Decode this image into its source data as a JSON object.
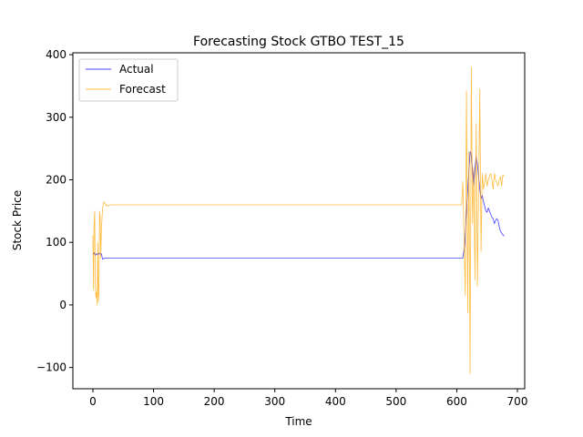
{
  "chart_data": {
    "type": "line",
    "title": "Forecasting Stock GTBO TEST_15",
    "xlabel": "Time",
    "ylabel": "Stock Price",
    "xlim": [
      -33,
      712
    ],
    "ylim": [
      -134,
      403
    ],
    "xticks": [
      0,
      100,
      200,
      300,
      400,
      500,
      600,
      700
    ],
    "yticks": [
      -100,
      0,
      100,
      200,
      300,
      400
    ],
    "grid": false,
    "legend_position": "top-left",
    "series": [
      {
        "name": "Actual",
        "color": "#0000ff",
        "x": [
          0,
          2,
          4,
          6,
          8,
          10,
          12,
          14,
          16,
          20,
          30,
          50,
          100,
          200,
          300,
          400,
          500,
          600,
          610,
          613,
          616,
          619,
          622,
          624,
          626,
          628,
          630,
          632,
          634,
          636,
          638,
          640,
          642,
          644,
          646,
          648,
          650,
          652,
          654,
          656,
          658,
          660,
          662,
          664,
          666,
          668,
          670,
          672,
          674,
          676,
          678
        ],
        "y": [
          80,
          84,
          79,
          82,
          80,
          83,
          81,
          82,
          73,
          75,
          75,
          75,
          75,
          75,
          75,
          75,
          75,
          75,
          75,
          95,
          150,
          200,
          245,
          240,
          215,
          190,
          220,
          237,
          225,
          205,
          185,
          170,
          175,
          165,
          158,
          150,
          148,
          155,
          150,
          145,
          140,
          138,
          130,
          135,
          138,
          135,
          125,
          118,
          115,
          112,
          110
        ]
      },
      {
        "name": "Forecast",
        "color": "#ffa500",
        "x": [
          0,
          1,
          2,
          3,
          4,
          5,
          6,
          7,
          8,
          9,
          10,
          11,
          12,
          13,
          14,
          16,
          18,
          20,
          22,
          24,
          26,
          28,
          30,
          40,
          100,
          200,
          300,
          400,
          500,
          600,
          608,
          610,
          612,
          614,
          616,
          618,
          620,
          622,
          624,
          626,
          628,
          630,
          632,
          634,
          636,
          638,
          640,
          642,
          644,
          646,
          648,
          650,
          652,
          654,
          656,
          658,
          660,
          662,
          664,
          666,
          668,
          670,
          672,
          674,
          676,
          678
        ],
        "y": [
          112,
          25,
          130,
          150,
          35,
          12,
          20,
          0,
          100,
          5,
          20,
          150,
          140,
          75,
          120,
          155,
          165,
          162,
          158,
          160,
          158,
          160,
          160,
          160,
          160,
          160,
          160,
          160,
          160,
          160,
          160,
          197,
          108,
          15,
          342,
          -12,
          245,
          -110,
          380,
          130,
          220,
          40,
          290,
          30,
          180,
          345,
          85,
          210,
          185,
          195,
          210,
          190,
          200,
          205,
          210,
          200,
          185,
          210,
          200,
          195,
          190,
          200,
          205,
          190,
          208,
          205
        ]
      }
    ]
  }
}
